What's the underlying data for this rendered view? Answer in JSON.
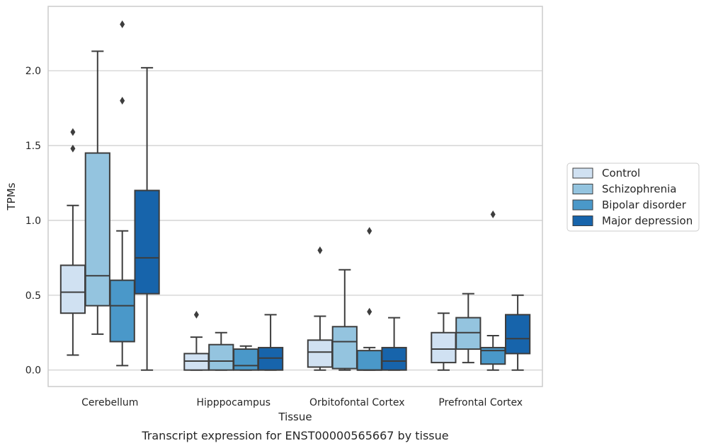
{
  "caption": "Transcript expression for ENST00000565667 by tissue",
  "chart_data": {
    "type": "box",
    "xlabel": "Tissue",
    "ylabel": "TPMs",
    "ylim": [
      -0.11,
      2.43
    ],
    "yticks": [
      0.0,
      0.5,
      1.0,
      1.5,
      2.0
    ],
    "ytick_labels": [
      "0.0",
      "0.5",
      "1.0",
      "1.5",
      "2.0"
    ],
    "grid": "horizontal",
    "legend_position": "right",
    "categories": [
      "Cerebellum",
      "Hipppocampus",
      "Orbitofontal Cortex",
      "Prefrontal Cortex"
    ],
    "series": [
      {
        "name": "Control",
        "color": "#d0e1f2",
        "boxes": [
          {
            "whislo": 0.1,
            "q1": 0.38,
            "med": 0.52,
            "q3": 0.7,
            "whishi": 1.1,
            "fliers": [
              1.48,
              1.59
            ]
          },
          {
            "whislo": 0.0,
            "q1": 0.0,
            "med": 0.06,
            "q3": 0.11,
            "whishi": 0.22,
            "fliers": [
              0.37
            ]
          },
          {
            "whislo": 0.0,
            "q1": 0.02,
            "med": 0.12,
            "q3": 0.2,
            "whishi": 0.36,
            "fliers": [
              0.8
            ]
          },
          {
            "whislo": 0.0,
            "q1": 0.05,
            "med": 0.14,
            "q3": 0.25,
            "whishi": 0.38,
            "fliers": []
          }
        ]
      },
      {
        "name": "Schizophrenia",
        "color": "#94c4df",
        "boxes": [
          {
            "whislo": 0.24,
            "q1": 0.43,
            "med": 0.63,
            "q3": 1.45,
            "whishi": 2.13,
            "fliers": []
          },
          {
            "whislo": 0.0,
            "q1": 0.0,
            "med": 0.06,
            "q3": 0.17,
            "whishi": 0.25,
            "fliers": []
          },
          {
            "whislo": 0.0,
            "q1": 0.01,
            "med": 0.19,
            "q3": 0.29,
            "whishi": 0.67,
            "fliers": []
          },
          {
            "whislo": 0.05,
            "q1": 0.14,
            "med": 0.25,
            "q3": 0.35,
            "whishi": 0.51,
            "fliers": []
          }
        ]
      },
      {
        "name": "Bipolar disorder",
        "color": "#4a98c9",
        "boxes": [
          {
            "whislo": 0.03,
            "q1": 0.19,
            "med": 0.43,
            "q3": 0.6,
            "whishi": 0.93,
            "fliers": [
              1.8,
              2.31
            ]
          },
          {
            "whislo": 0.0,
            "q1": 0.0,
            "med": 0.03,
            "q3": 0.14,
            "whishi": 0.16,
            "fliers": []
          },
          {
            "whislo": 0.0,
            "q1": 0.0,
            "med": 0.0,
            "q3": 0.13,
            "whishi": 0.15,
            "fliers": [
              0.39,
              0.93
            ]
          },
          {
            "whislo": 0.0,
            "q1": 0.04,
            "med": 0.13,
            "q3": 0.15,
            "whishi": 0.23,
            "fliers": [
              1.04
            ]
          }
        ]
      },
      {
        "name": "Major depression",
        "color": "#1764ab",
        "boxes": [
          {
            "whislo": 0.0,
            "q1": 0.51,
            "med": 0.75,
            "q3": 1.2,
            "whishi": 2.02,
            "fliers": []
          },
          {
            "whislo": 0.0,
            "q1": 0.0,
            "med": 0.08,
            "q3": 0.15,
            "whishi": 0.37,
            "fliers": []
          },
          {
            "whislo": 0.0,
            "q1": 0.0,
            "med": 0.06,
            "q3": 0.15,
            "whishi": 0.35,
            "fliers": []
          },
          {
            "whislo": 0.0,
            "q1": 0.11,
            "med": 0.21,
            "q3": 0.37,
            "whishi": 0.5,
            "fliers": []
          }
        ]
      }
    ]
  }
}
